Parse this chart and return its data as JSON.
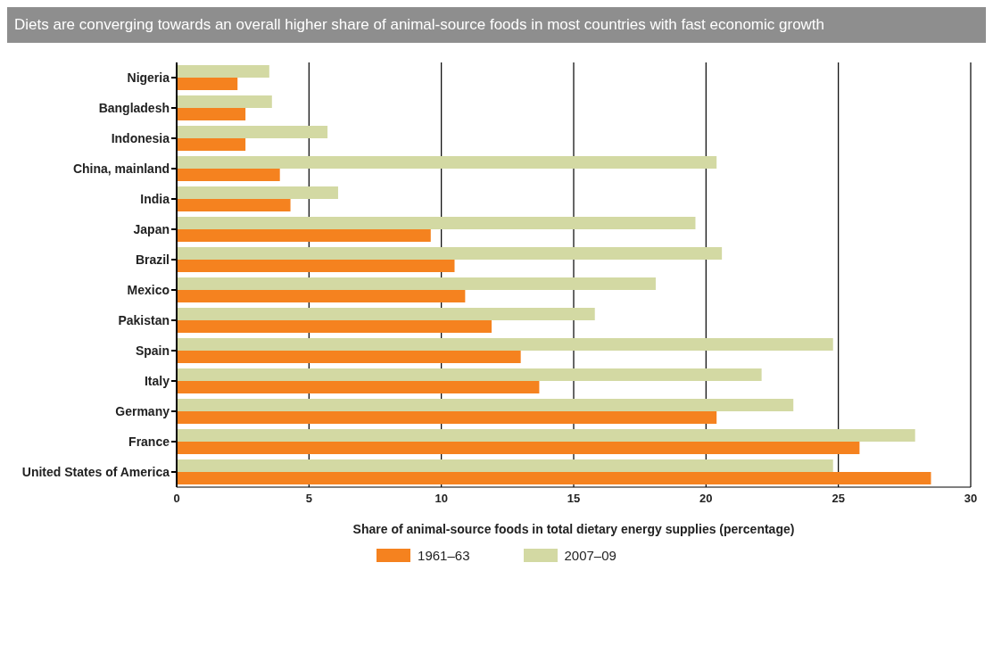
{
  "chart_data": {
    "type": "bar",
    "orientation": "horizontal",
    "title": "Diets are converging towards an overall higher share of animal-source foods in most countries with fast economic growth",
    "xlabel": "Share of animal-source foods in total dietary energy supplies (percentage)",
    "categories": [
      "Nigeria",
      "Bangladesh",
      "Indonesia",
      "China, mainland",
      "India",
      "Japan",
      "Brazil",
      "Mexico",
      "Pakistan",
      "Spain",
      "Italy",
      "Germany",
      "France",
      "United States of America"
    ],
    "series": [
      {
        "name": "1961–63",
        "color": "#f5821f",
        "values": [
          2.3,
          2.6,
          2.6,
          3.9,
          4.3,
          9.6,
          10.5,
          10.9,
          11.9,
          13.0,
          13.7,
          20.4,
          25.8,
          28.5
        ]
      },
      {
        "name": "2007–09",
        "color": "#d3d9a3",
        "values": [
          3.5,
          3.6,
          5.7,
          20.4,
          6.1,
          19.6,
          20.6,
          18.1,
          15.8,
          24.8,
          22.1,
          23.3,
          27.9,
          24.8
        ]
      }
    ],
    "xlim": [
      0,
      30
    ],
    "xticks": [
      0,
      5,
      10,
      15,
      20,
      25,
      30
    ],
    "grid": "x",
    "legend": "bottom"
  }
}
